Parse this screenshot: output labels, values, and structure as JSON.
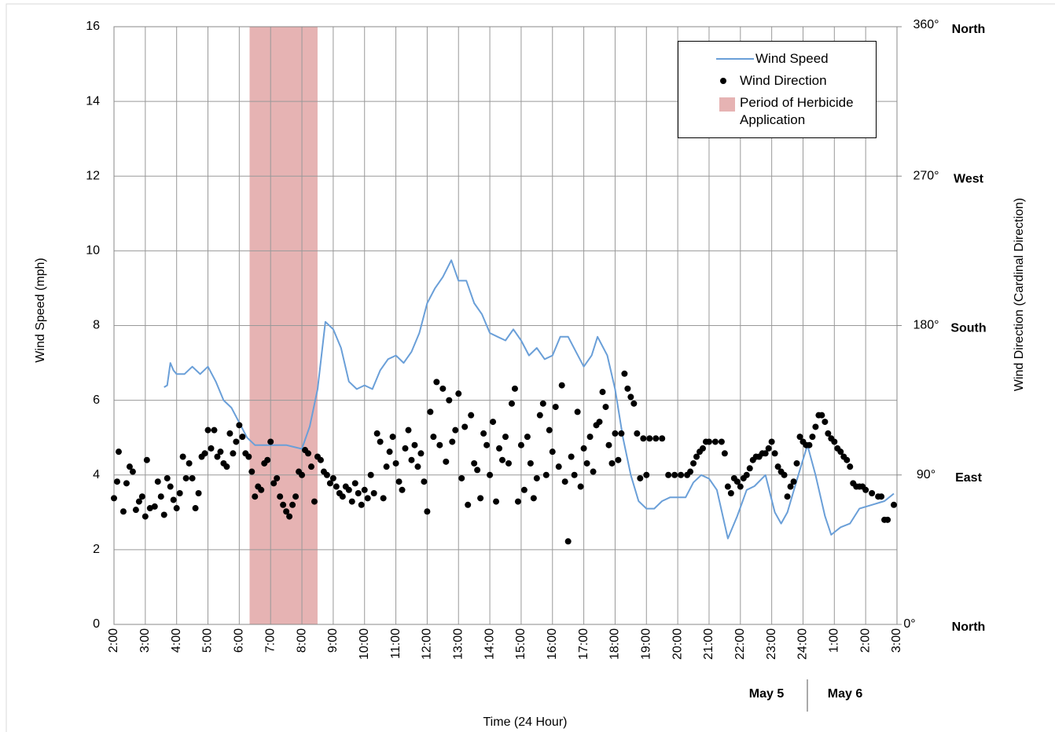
{
  "chart_data": {
    "type": "line",
    "x_label": "Time (24 Hour)",
    "y_label": "Wind Speed (mph)",
    "y2_label": "Wind Direction (Cardinal Direction)",
    "xlim": [
      2,
      27
    ],
    "xticks": [
      {
        "value": 2,
        "label": "2:00"
      },
      {
        "value": 3,
        "label": "3:00"
      },
      {
        "value": 4,
        "label": "4:00"
      },
      {
        "value": 5,
        "label": "5:00"
      },
      {
        "value": 6,
        "label": "6:00"
      },
      {
        "value": 7,
        "label": "7:00"
      },
      {
        "value": 8,
        "label": "8:00"
      },
      {
        "value": 9,
        "label": "9:00"
      },
      {
        "value": 10,
        "label": "10:00"
      },
      {
        "value": 11,
        "label": "11:00"
      },
      {
        "value": 12,
        "label": "12:00"
      },
      {
        "value": 13,
        "label": "13:00"
      },
      {
        "value": 14,
        "label": "14:00"
      },
      {
        "value": 15,
        "label": "15:00"
      },
      {
        "value": 16,
        "label": "16:00"
      },
      {
        "value": 17,
        "label": "17:00"
      },
      {
        "value": 18,
        "label": "18:00"
      },
      {
        "value": 19,
        "label": "19:00"
      },
      {
        "value": 20,
        "label": "20:00"
      },
      {
        "value": 21,
        "label": "21:00"
      },
      {
        "value": 22,
        "label": "22:00"
      },
      {
        "value": 23,
        "label": "23:00"
      },
      {
        "value": 24,
        "label": "24:00"
      },
      {
        "value": 25,
        "label": "1:00"
      },
      {
        "value": 26,
        "label": "2:00"
      },
      {
        "value": 27,
        "label": "3:00"
      }
    ],
    "ylim": [
      0,
      16
    ],
    "yticks": [
      0,
      2,
      4,
      6,
      8,
      10,
      12,
      14,
      16
    ],
    "y2lim": [
      0,
      360
    ],
    "y2ticks": [
      {
        "value": 0,
        "label": "0°"
      },
      {
        "value": 90,
        "label": "90°"
      },
      {
        "value": 180,
        "label": "180°"
      },
      {
        "value": 270,
        "label": "270°"
      },
      {
        "value": 360,
        "label": "360°"
      }
    ],
    "y2_direction_labels": [
      {
        "value": 0,
        "label": "North"
      },
      {
        "value": 90,
        "label": "East"
      },
      {
        "value": 180,
        "label": "South"
      },
      {
        "value": 270,
        "label": "West"
      },
      {
        "value": 360,
        "label": "North"
      }
    ],
    "date_labels": [
      "May 5",
      "May 6"
    ],
    "grid": true,
    "legend": "top-right",
    "shaded_periods": [
      {
        "name": "Period of Herbicide Application",
        "color": "#e6b3b3",
        "start": 6.33,
        "end": 8.5
      }
    ],
    "series": [
      {
        "name": "Wind Speed",
        "type": "line",
        "color": "#6a9fd8",
        "x": [
          3.6,
          3.7,
          3.8,
          3.9,
          4.0,
          4.25,
          4.5,
          4.75,
          5.0,
          5.25,
          5.5,
          5.75,
          6.0,
          6.25,
          6.5,
          6.75,
          7.0,
          7.25,
          7.5,
          7.75,
          8.0,
          8.25,
          8.5,
          8.75,
          9.0,
          9.25,
          9.5,
          9.75,
          10.0,
          10.25,
          10.5,
          10.75,
          11.0,
          11.25,
          11.5,
          11.75,
          12.0,
          12.25,
          12.5,
          12.77,
          13.0,
          13.25,
          13.5,
          13.75,
          14.0,
          14.25,
          14.5,
          14.75,
          15.0,
          15.25,
          15.5,
          15.75,
          16.0,
          16.25,
          16.5,
          16.75,
          17.0,
          17.25,
          17.44,
          17.75,
          18.0,
          18.25,
          18.5,
          18.75,
          19.0,
          19.25,
          19.5,
          19.75,
          20.0,
          20.25,
          20.5,
          20.75,
          21.0,
          21.25,
          21.6,
          21.9,
          22.2,
          22.45,
          22.8,
          23.1,
          23.3,
          23.5,
          23.85,
          24.14,
          24.4,
          24.7,
          24.9,
          25.2,
          25.5,
          25.8,
          26.2,
          26.6,
          26.9
        ],
        "values": [
          6.35,
          6.4,
          7.0,
          6.8,
          6.7,
          6.7,
          6.9,
          6.7,
          6.9,
          6.5,
          6.0,
          5.8,
          5.4,
          5.0,
          4.8,
          4.8,
          4.8,
          4.8,
          4.8,
          4.75,
          4.7,
          5.3,
          6.3,
          8.1,
          7.9,
          7.4,
          6.5,
          6.3,
          6.4,
          6.3,
          6.8,
          7.1,
          7.2,
          7.0,
          7.3,
          7.8,
          8.6,
          9.0,
          9.3,
          9.75,
          9.2,
          9.2,
          8.6,
          8.3,
          7.8,
          7.7,
          7.6,
          7.9,
          7.6,
          7.2,
          7.4,
          7.1,
          7.2,
          7.7,
          7.7,
          7.3,
          6.9,
          7.2,
          7.7,
          7.2,
          6.3,
          5.0,
          4.0,
          3.3,
          3.1,
          3.1,
          3.3,
          3.4,
          3.4,
          3.4,
          3.8,
          4.0,
          3.9,
          3.6,
          2.3,
          2.9,
          3.6,
          3.7,
          4.0,
          3.0,
          2.7,
          3.0,
          4.0,
          4.8,
          4.0,
          2.9,
          2.4,
          2.6,
          2.7,
          3.1,
          3.2,
          3.3,
          3.5
        ]
      },
      {
        "name": "Wind Direction",
        "type": "scatter",
        "axis": "y2",
        "color": "#000000",
        "x": [
          2.0,
          2.1,
          2.15,
          2.3,
          2.4,
          2.5,
          2.6,
          2.7,
          2.8,
          2.9,
          3.0,
          3.05,
          3.15,
          3.3,
          3.4,
          3.5,
          3.6,
          3.7,
          3.8,
          3.9,
          4.0,
          4.1,
          4.2,
          4.3,
          4.4,
          4.5,
          4.6,
          4.7,
          4.8,
          4.9,
          5.0,
          5.1,
          5.2,
          5.3,
          5.4,
          5.5,
          5.6,
          5.7,
          5.8,
          5.9,
          6.0,
          6.1,
          6.2,
          6.3,
          6.4,
          6.5,
          6.6,
          6.7,
          6.8,
          6.9,
          7.0,
          7.1,
          7.2,
          7.3,
          7.4,
          7.5,
          7.6,
          7.7,
          7.8,
          7.9,
          8.0,
          8.1,
          8.2,
          8.3,
          8.4,
          8.5,
          8.6,
          8.7,
          8.8,
          8.9,
          9.0,
          9.1,
          9.2,
          9.3,
          9.4,
          9.5,
          9.6,
          9.7,
          9.8,
          9.9,
          10.0,
          10.1,
          10.2,
          10.3,
          10.4,
          10.5,
          10.6,
          10.7,
          10.8,
          10.9,
          11.0,
          11.1,
          11.2,
          11.3,
          11.4,
          11.5,
          11.6,
          11.7,
          11.8,
          11.9,
          12.0,
          12.1,
          12.2,
          12.3,
          12.4,
          12.5,
          12.6,
          12.7,
          12.8,
          12.9,
          13.0,
          13.1,
          13.2,
          13.3,
          13.4,
          13.5,
          13.6,
          13.7,
          13.8,
          13.9,
          14.0,
          14.1,
          14.2,
          14.3,
          14.4,
          14.5,
          14.6,
          14.7,
          14.8,
          14.9,
          15.0,
          15.1,
          15.2,
          15.3,
          15.4,
          15.5,
          15.6,
          15.7,
          15.8,
          15.9,
          16.0,
          16.1,
          16.2,
          16.3,
          16.4,
          16.5,
          16.6,
          16.7,
          16.8,
          16.9,
          17.0,
          17.1,
          17.2,
          17.3,
          17.4,
          17.5,
          17.6,
          17.7,
          17.8,
          17.9,
          18.0,
          18.1,
          18.2,
          18.3,
          18.4,
          18.5,
          18.6,
          18.7,
          18.8,
          18.9,
          19.0,
          19.1,
          19.3,
          19.5,
          19.7,
          19.9,
          20.1,
          20.3,
          20.4,
          20.5,
          20.6,
          20.7,
          20.8,
          20.9,
          21.0,
          21.2,
          21.4,
          21.5,
          21.6,
          21.7,
          21.8,
          21.9,
          22.0,
          22.1,
          22.2,
          22.3,
          22.4,
          22.5,
          22.6,
          22.7,
          22.8,
          22.9,
          23.0,
          23.1,
          23.2,
          23.3,
          23.4,
          23.5,
          23.6,
          23.7,
          23.8,
          23.9,
          24.0,
          24.1,
          24.2,
          24.3,
          24.4,
          24.5,
          24.6,
          24.7,
          24.8,
          24.9,
          25.0,
          25.1,
          25.2,
          25.3,
          25.4,
          25.5,
          25.6,
          25.7,
          25.8,
          25.9,
          26.0,
          26.2,
          26.4,
          26.5,
          26.6,
          26.7,
          26.9
        ],
        "values": [
          76,
          86,
          104,
          68,
          85,
          95,
          92,
          69,
          74,
          77,
          65,
          99,
          70,
          71,
          86,
          77,
          66,
          88,
          83,
          75,
          70,
          79,
          101,
          88,
          97,
          88,
          70,
          79,
          101,
          103,
          117,
          106,
          117,
          101,
          104,
          97,
          95,
          115,
          103,
          110,
          120,
          113,
          103,
          101,
          92,
          77,
          83,
          81,
          97,
          99,
          110,
          85,
          88,
          77,
          72,
          68,
          65,
          72,
          77,
          92,
          90,
          105,
          103,
          95,
          74,
          101,
          99,
          92,
          90,
          85,
          88,
          83,
          79,
          77,
          83,
          81,
          74,
          85,
          79,
          72,
          81,
          76,
          90,
          79,
          115,
          110,
          76,
          95,
          104,
          113,
          97,
          86,
          81,
          106,
          117,
          99,
          108,
          95,
          103,
          86,
          68,
          128,
          113,
          146,
          108,
          142,
          98,
          135,
          110,
          117,
          139,
          88,
          119,
          72,
          126,
          97,
          93,
          76,
          115,
          108,
          90,
          122,
          74,
          106,
          99,
          113,
          97,
          133,
          142,
          74,
          108,
          81,
          113,
          97,
          76,
          88,
          126,
          133,
          90,
          117,
          104,
          131,
          95,
          144,
          86,
          50,
          101,
          90,
          128,
          83,
          106,
          97,
          113,
          92,
          120,
          122,
          140,
          131,
          108,
          97,
          115,
          99,
          115,
          151,
          142,
          137,
          133,
          115,
          88,
          112,
          90,
          112,
          112,
          112,
          90,
          90,
          90,
          90,
          92,
          97,
          101,
          104,
          106,
          110,
          110,
          110,
          110,
          103,
          83,
          79,
          88,
          86,
          83,
          88,
          90,
          94,
          99,
          101,
          101,
          103,
          103,
          106,
          110,
          103,
          95,
          92,
          90,
          77,
          83,
          86,
          97,
          113,
          110,
          108,
          108,
          113,
          119,
          126,
          126,
          122,
          115,
          112,
          110,
          106,
          104,
          101,
          99,
          95,
          85,
          83,
          83,
          83,
          81,
          79,
          77,
          77,
          63,
          63,
          72
        ]
      }
    ]
  }
}
